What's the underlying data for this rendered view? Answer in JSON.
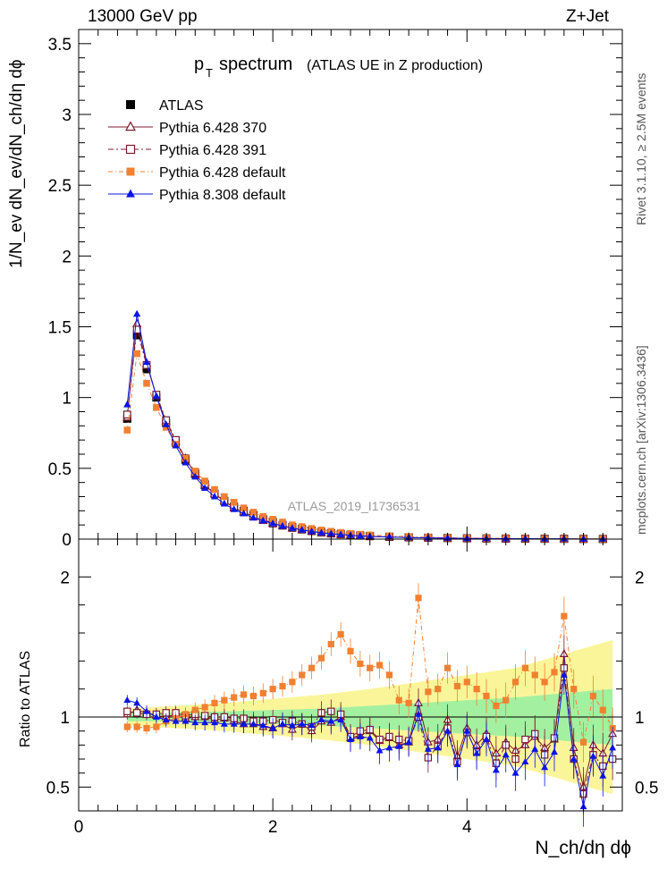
{
  "header": {
    "left": "13000 GeV pp",
    "right": "Z+Jet"
  },
  "side_labels": {
    "top": "Rivet 3.1.10, ≥ 2.5M events",
    "bottom": "mcplots.cern.ch [arXiv:1306.3436]"
  },
  "chart_data": [
    {
      "type": "line",
      "title_main": "p",
      "title_sub": "T",
      "title_rest": "spectrum",
      "title_paren": "(ATLAS UE in Z production)",
      "watermark": "ATLAS_2019_I1736531",
      "ylabel": "1/N_ev dN_ev/dN_ch/dη dϕ",
      "ylim": [
        0,
        3.6
      ],
      "yticks": [
        "0",
        "0.5",
        "1",
        "1.5",
        "2",
        "2.5",
        "3",
        "3.5"
      ],
      "xlim": [
        0,
        5.6
      ],
      "x": [
        0.5,
        0.6,
        0.7,
        0.8,
        0.9,
        1.0,
        1.1,
        1.2,
        1.3,
        1.4,
        1.5,
        1.6,
        1.7,
        1.8,
        1.9,
        2.0,
        2.1,
        2.2,
        2.3,
        2.4,
        2.5,
        2.6,
        2.7,
        2.8,
        2.9,
        3.0,
        3.2,
        3.4,
        3.6,
        3.8,
        4.0,
        4.2,
        4.4,
        4.6,
        4.8,
        5.0,
        5.2,
        5.4
      ],
      "series": [
        {
          "name": "ATLAS",
          "color": "#000000",
          "marker": "square-filled",
          "values": [
            0.85,
            1.44,
            1.2,
            1.0,
            0.82,
            0.68,
            0.56,
            0.46,
            0.38,
            0.32,
            0.27,
            0.23,
            0.2,
            0.17,
            0.14,
            0.12,
            0.1,
            0.085,
            0.072,
            0.06,
            0.05,
            0.042,
            0.036,
            0.03,
            0.026,
            0.022,
            0.017,
            0.013,
            0.01,
            0.008,
            0.006,
            0.005,
            0.004,
            0.003,
            0.0025,
            0.002,
            0.0015,
            0.001
          ]
        },
        {
          "name": "Pythia 6.428 370",
          "color": "#7b1a2e",
          "marker": "triangle-open",
          "dash": "",
          "values": [
            0.86,
            1.52,
            1.24,
            1.01,
            0.83,
            0.69,
            0.57,
            0.46,
            0.38,
            0.32,
            0.27,
            0.22,
            0.19,
            0.16,
            0.13,
            0.11,
            0.094,
            0.078,
            0.066,
            0.055,
            0.045,
            0.038,
            0.032,
            0.027,
            0.023,
            0.019,
            0.015,
            0.011,
            0.009,
            0.007,
            0.005,
            0.004,
            0.003,
            0.003,
            0.002,
            0.002,
            0.001,
            0.001
          ]
        },
        {
          "name": "Pythia 6.428 391",
          "color": "#7b1a2e",
          "marker": "square-open",
          "dash": "6,3,2,3",
          "values": [
            0.88,
            1.48,
            1.23,
            1.02,
            0.84,
            0.7,
            0.57,
            0.47,
            0.39,
            0.32,
            0.27,
            0.23,
            0.19,
            0.16,
            0.14,
            0.11,
            0.095,
            0.079,
            0.067,
            0.056,
            0.046,
            0.039,
            0.033,
            0.028,
            0.024,
            0.02,
            0.015,
            0.011,
            0.009,
            0.007,
            0.005,
            0.004,
            0.003,
            0.003,
            0.002,
            0.002,
            0.001,
            0.001
          ]
        },
        {
          "name": "Pythia 6.428 default",
          "color": "#f28030",
          "marker": "square-filled",
          "dash": "5,3,1,3",
          "values": [
            0.77,
            1.31,
            1.1,
            0.93,
            0.79,
            0.67,
            0.57,
            0.48,
            0.41,
            0.35,
            0.3,
            0.26,
            0.22,
            0.19,
            0.16,
            0.14,
            0.12,
            0.1,
            0.088,
            0.075,
            0.064,
            0.055,
            0.047,
            0.04,
            0.034,
            0.029,
            0.022,
            0.017,
            0.013,
            0.01,
            0.008,
            0.006,
            0.005,
            0.004,
            0.003,
            0.002,
            0.002,
            0.001
          ]
        },
        {
          "name": "Pythia 8.308 default",
          "color": "#0a14e6",
          "marker": "triangle-filled",
          "dash": "",
          "values": [
            0.95,
            1.59,
            1.25,
            1.01,
            0.81,
            0.66,
            0.54,
            0.44,
            0.36,
            0.3,
            0.25,
            0.21,
            0.18,
            0.15,
            0.13,
            0.11,
            0.092,
            0.077,
            0.065,
            0.054,
            0.045,
            0.038,
            0.032,
            0.027,
            0.023,
            0.019,
            0.015,
            0.011,
            0.009,
            0.007,
            0.005,
            0.004,
            0.003,
            0.003,
            0.002,
            0.002,
            0.001,
            0.001
          ]
        }
      ]
    },
    {
      "type": "line",
      "ylabel": "Ratio to ATLAS",
      "xlabel": "N_ch/dη dϕ",
      "ylim": [
        0.33,
        2.27
      ],
      "yticks": [
        "0.5",
        "1",
        "2"
      ],
      "xlim": [
        0,
        5.6
      ],
      "xticks": [
        "0",
        "2",
        "4"
      ],
      "bands": {
        "x": [
          0.5,
          1.0,
          1.5,
          2.0,
          2.5,
          3.0,
          3.5,
          4.0,
          4.5,
          5.0,
          5.5
        ],
        "stat_half_width": [
          0.03,
          0.03,
          0.04,
          0.05,
          0.06,
          0.08,
          0.1,
          0.12,
          0.14,
          0.17,
          0.2
        ],
        "total_half_width": [
          0.06,
          0.08,
          0.1,
          0.13,
          0.16,
          0.2,
          0.25,
          0.3,
          0.35,
          0.45,
          0.55
        ]
      },
      "x": [
        0.5,
        0.6,
        0.7,
        0.8,
        0.9,
        1.0,
        1.1,
        1.2,
        1.3,
        1.4,
        1.5,
        1.6,
        1.7,
        1.8,
        1.9,
        2.0,
        2.1,
        2.2,
        2.3,
        2.4,
        2.5,
        2.6,
        2.7,
        2.8,
        2.9,
        3.0,
        3.1,
        3.2,
        3.3,
        3.4,
        3.5,
        3.6,
        3.7,
        3.8,
        3.9,
        4.0,
        4.1,
        4.2,
        4.3,
        4.4,
        4.5,
        4.6,
        4.7,
        4.8,
        4.9,
        5.0,
        5.1,
        5.2,
        5.3,
        5.4,
        5.5
      ],
      "series": [
        {
          "name": "Pythia 6.428 370",
          "color": "#7b1a2e",
          "marker": "triangle-open",
          "dash": "",
          "values": [
            1.02,
            1.05,
            1.03,
            1.01,
            1.0,
            1.02,
            0.99,
            1.0,
            1.0,
            0.98,
            0.99,
            0.97,
            0.95,
            0.95,
            0.93,
            0.92,
            0.95,
            0.91,
            0.95,
            0.9,
            0.97,
            0.96,
            1.0,
            0.85,
            0.87,
            0.9,
            0.83,
            0.85,
            0.8,
            0.82,
            1.1,
            0.82,
            0.84,
            0.98,
            0.72,
            0.92,
            0.8,
            0.88,
            0.74,
            0.82,
            0.76,
            0.8,
            0.86,
            0.78,
            0.84,
            1.45,
            0.78,
            0.5,
            0.8,
            0.74,
            0.88
          ]
        },
        {
          "name": "Pythia 6.428 391",
          "color": "#7b1a2e",
          "marker": "square-open",
          "dash": "6,3,2,3",
          "values": [
            1.04,
            1.03,
            1.02,
            1.02,
            1.03,
            1.03,
            1.01,
            1.02,
            1.01,
            1.0,
            1.0,
            0.99,
            0.99,
            0.97,
            0.97,
            0.98,
            0.96,
            0.97,
            0.95,
            0.93,
            1.03,
            1.04,
            1.02,
            0.86,
            0.9,
            0.91,
            0.84,
            0.86,
            0.84,
            0.83,
            1.0,
            0.71,
            0.79,
            0.92,
            0.68,
            0.89,
            0.75,
            0.86,
            0.67,
            0.8,
            0.7,
            0.84,
            0.88,
            0.73,
            0.85,
            1.35,
            0.7,
            0.45,
            0.73,
            0.65,
            0.7
          ]
        },
        {
          "name": "Pythia 6.428 default",
          "color": "#f28030",
          "marker": "square-filled",
          "dash": "5,3,1,3",
          "values": [
            0.93,
            0.93,
            0.92,
            0.93,
            0.97,
            0.99,
            1.02,
            1.05,
            1.07,
            1.1,
            1.12,
            1.14,
            1.16,
            1.15,
            1.17,
            1.2,
            1.22,
            1.25,
            1.3,
            1.35,
            1.42,
            1.52,
            1.59,
            1.47,
            1.38,
            1.35,
            1.37,
            1.3,
            1.12,
            1.1,
            1.85,
            1.18,
            1.2,
            1.35,
            1.22,
            1.25,
            1.2,
            1.15,
            1.08,
            1.12,
            1.25,
            1.35,
            1.3,
            1.25,
            1.32,
            1.72,
            1.2,
            0.82,
            1.15,
            1.05,
            0.92
          ]
        },
        {
          "name": "Pythia 8.308 default",
          "color": "#0a14e6",
          "marker": "triangle-filled",
          "dash": "",
          "values": [
            1.12,
            1.1,
            1.04,
            1.0,
            0.98,
            0.97,
            0.97,
            0.96,
            0.96,
            0.96,
            0.95,
            0.95,
            0.95,
            0.95,
            0.94,
            0.92,
            0.95,
            0.94,
            0.95,
            0.94,
            0.98,
            0.97,
            0.98,
            0.84,
            0.86,
            0.85,
            0.76,
            0.78,
            0.79,
            0.82,
            1.02,
            0.77,
            0.78,
            0.9,
            0.66,
            0.9,
            0.74,
            0.84,
            0.62,
            0.73,
            0.6,
            0.68,
            0.77,
            0.64,
            0.75,
            1.3,
            0.7,
            0.36,
            0.72,
            0.58,
            0.78
          ]
        }
      ]
    }
  ]
}
